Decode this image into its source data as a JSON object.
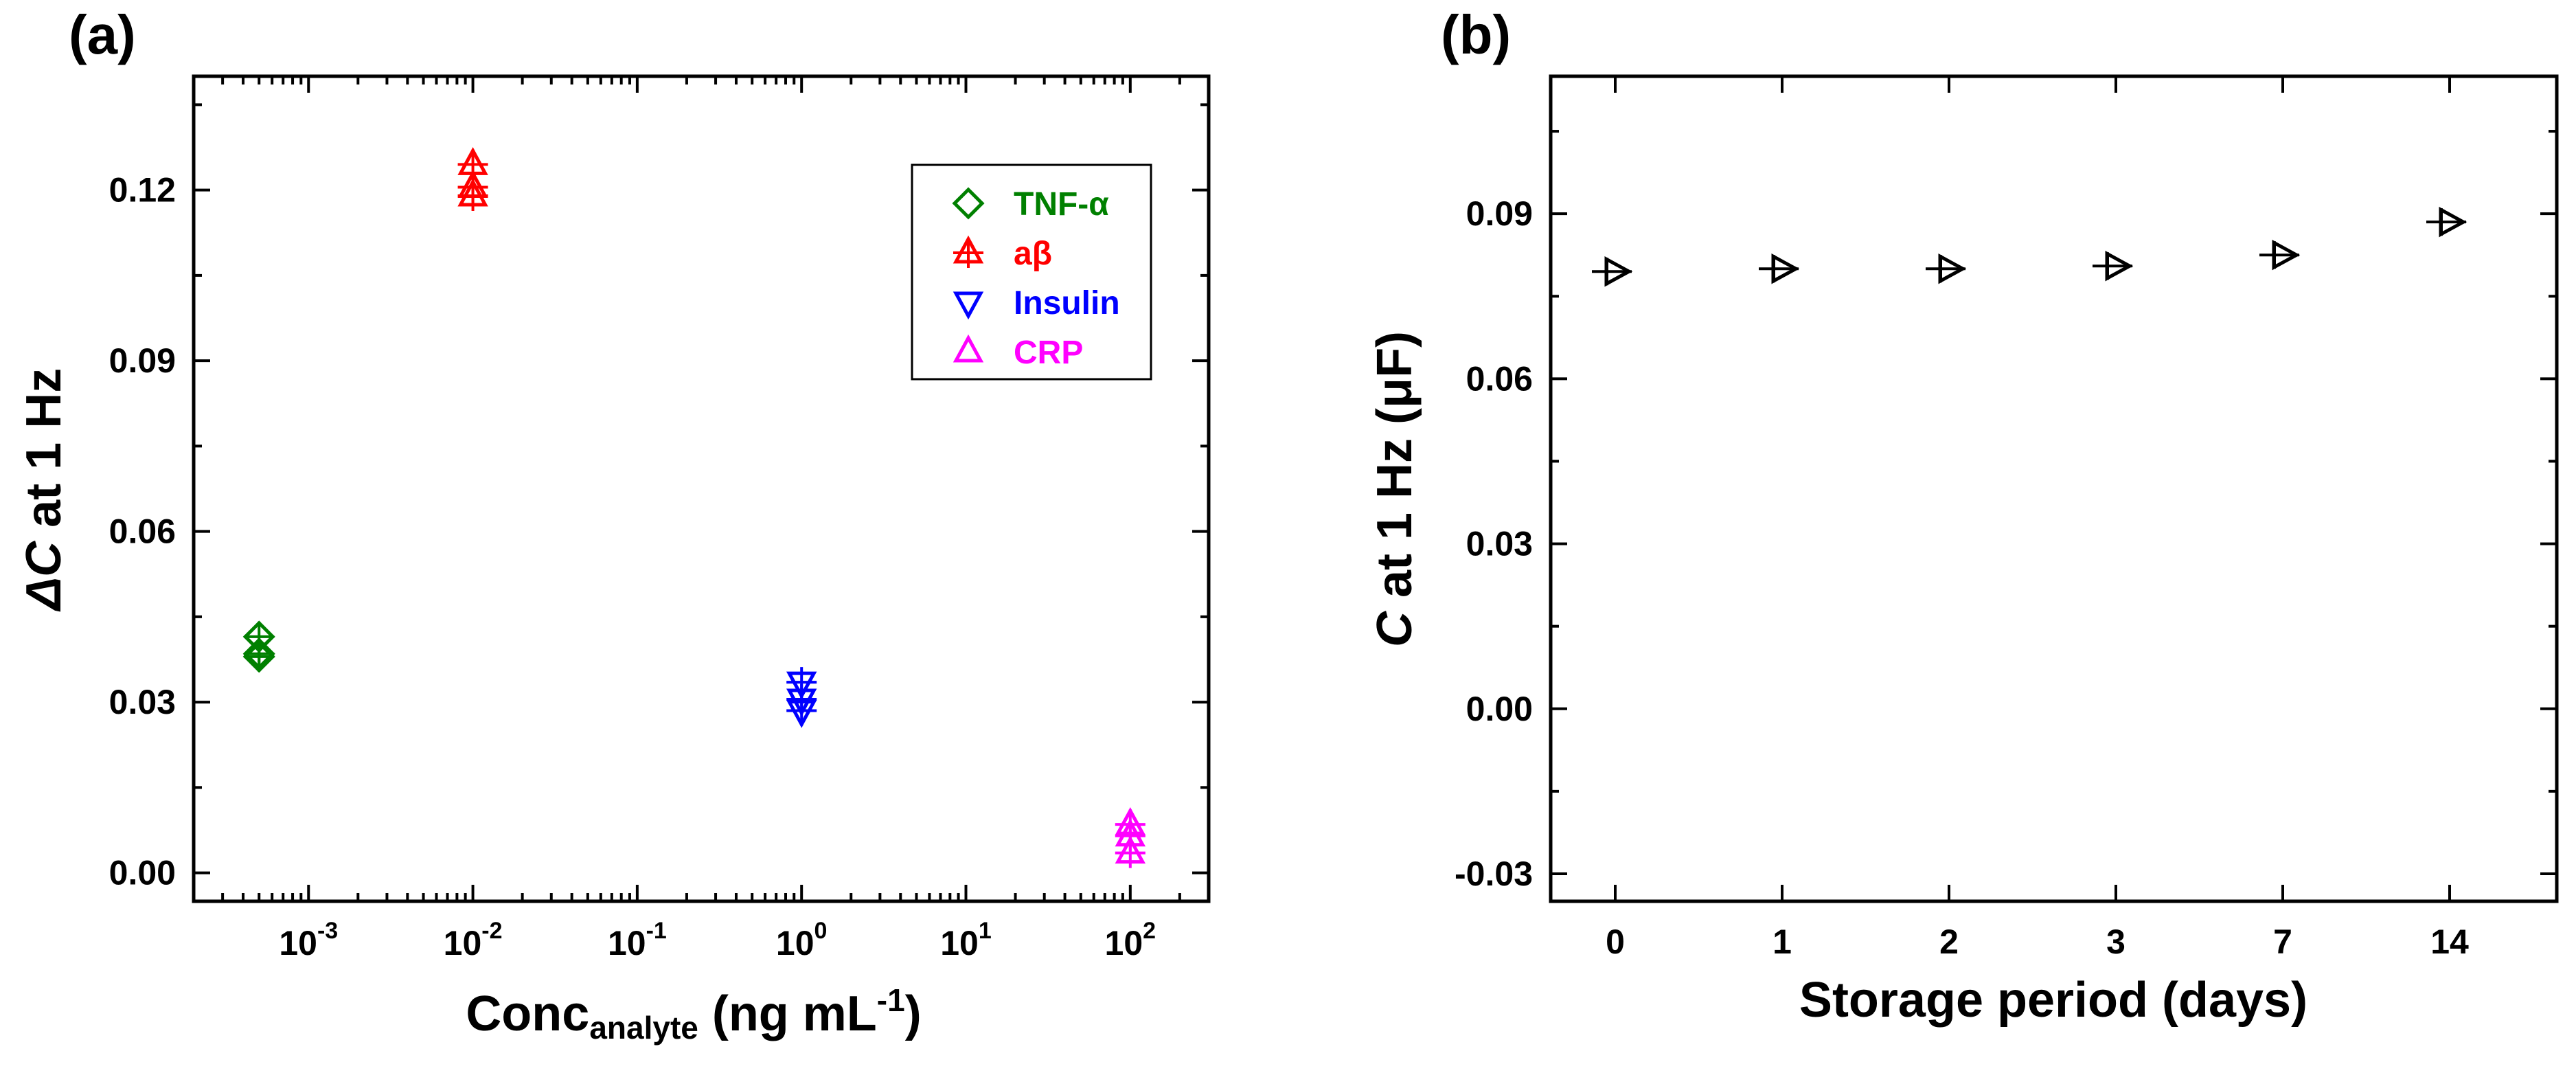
{
  "chart_data": [
    {
      "type": "scatter",
      "panel_label": "(a)",
      "xscale": "log",
      "xlim": [
        0.0002,
        300
      ],
      "ylim": [
        -0.005,
        0.14
      ],
      "xtick_labels": [
        {
          "base": "10",
          "exp": "-3",
          "value": 0.001
        },
        {
          "base": "10",
          "exp": "-2",
          "value": 0.01
        },
        {
          "base": "10",
          "exp": "-1",
          "value": 0.1
        },
        {
          "base": "10",
          "exp": "0",
          "value": 1
        },
        {
          "base": "10",
          "exp": "1",
          "value": 10
        },
        {
          "base": "10",
          "exp": "2",
          "value": 100
        }
      ],
      "ytick_labels": [
        "0.00",
        "0.03",
        "0.06",
        "0.09",
        "0.12"
      ],
      "xlabel": {
        "main": "Conc",
        "sub": "analyte",
        "rest": " (ng mL",
        "sup": "-1",
        "end": ")"
      },
      "ylabel": {
        "italic": "ΔC",
        "rest": " at 1 Hz"
      },
      "legend_position": "top-right",
      "series": [
        {
          "name": "TNF-α",
          "color": "#008000",
          "marker": "diamond",
          "points": [
            {
              "x": 0.0005,
              "y": 0.0415
            },
            {
              "x": 0.0005,
              "y": 0.0385
            },
            {
              "x": 0.0005,
              "y": 0.038
            }
          ]
        },
        {
          "name": "aβ",
          "color": "#ff0000",
          "marker": "triangle-up",
          "points": [
            {
              "x": 0.01,
              "y": 0.1245
            },
            {
              "x": 0.01,
              "y": 0.1205
            },
            {
              "x": 0.01,
              "y": 0.119
            }
          ]
        },
        {
          "name": "Insulin",
          "color": "#0000ff",
          "marker": "triangle-down",
          "points": [
            {
              "x": 1,
              "y": 0.0335
            },
            {
              "x": 1,
              "y": 0.0305
            },
            {
              "x": 1,
              "y": 0.0285
            }
          ]
        },
        {
          "name": "CRP",
          "color": "#ff00ff",
          "marker": "triangle-up",
          "points": [
            {
              "x": 100,
              "y": 0.0085
            },
            {
              "x": 100,
              "y": 0.0065
            },
            {
              "x": 100,
              "y": 0.0035
            }
          ]
        }
      ]
    },
    {
      "type": "scatter",
      "panel_label": "(b)",
      "categories": [
        "0",
        "1",
        "2",
        "3",
        "7",
        "14"
      ],
      "ylim": [
        -0.035,
        0.115
      ],
      "ytick_labels": [
        "-0.03",
        "0.00",
        "0.03",
        "0.06",
        "0.09"
      ],
      "xlabel": "Storage period (days)",
      "ylabel": {
        "italic": "C",
        "rest": " at 1 Hz (μF)"
      },
      "series": [
        {
          "name": "C at 1 Hz",
          "color": "#000000",
          "marker": "triangle-right",
          "values": [
            0.0795,
            0.08,
            0.08,
            0.0805,
            0.0825,
            0.0885
          ]
        }
      ]
    }
  ]
}
